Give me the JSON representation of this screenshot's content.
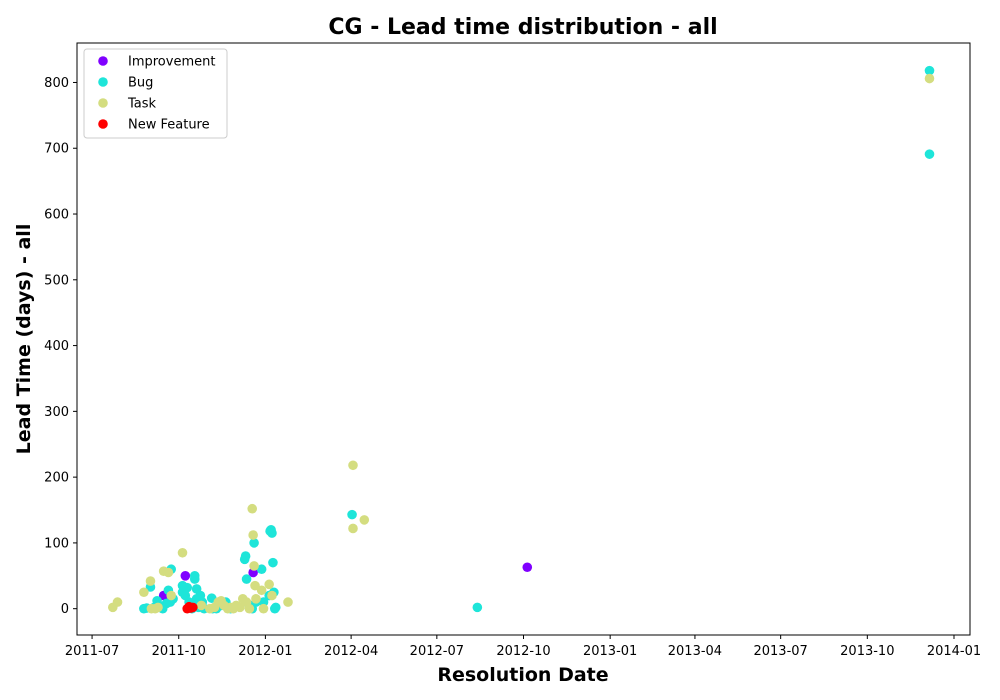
{
  "chart_data": {
    "type": "scatter",
    "title": "CG - Lead time distribution - all",
    "xlabel": "Resolution Date",
    "ylabel": "Lead Time (days) - all",
    "xlim": [
      "2011-06-15",
      "2014-01-18"
    ],
    "ylim": [
      -40,
      860
    ],
    "x_ticks": [
      "2011-07-01",
      "2011-10-01",
      "2012-01-01",
      "2012-04-01",
      "2012-07-01",
      "2012-10-01",
      "2013-01-01",
      "2013-04-01",
      "2013-07-01",
      "2013-10-01",
      "2014-01-01"
    ],
    "x_tick_labels": [
      "2011-07",
      "2011-10",
      "2012-01",
      "2012-04",
      "2012-07",
      "2012-10",
      "2013-01",
      "2013-04",
      "2013-07",
      "2013-10",
      "2014-01"
    ],
    "y_ticks": [
      0,
      100,
      200,
      300,
      400,
      500,
      600,
      700,
      800
    ],
    "y_tick_labels": [
      "0",
      "100",
      "200",
      "300",
      "400",
      "500",
      "600",
      "700",
      "800"
    ],
    "grid": false,
    "legend_position": "top-left",
    "series": [
      {
        "name": "Improvement",
        "color": "#8000ff",
        "points": [
          [
            "2011-09-15",
            20
          ],
          [
            "2011-10-08",
            50
          ],
          [
            "2011-10-15",
            2
          ],
          [
            "2011-10-22",
            5
          ],
          [
            "2011-10-25",
            8
          ],
          [
            "2011-12-19",
            55
          ],
          [
            "2012-10-05",
            63
          ]
        ]
      },
      {
        "name": "Bug",
        "color": "#1ee5d9",
        "points": [
          [
            "2011-08-25",
            0
          ],
          [
            "2011-08-28",
            1
          ],
          [
            "2011-09-01",
            33
          ],
          [
            "2011-09-05",
            2
          ],
          [
            "2011-09-08",
            12
          ],
          [
            "2011-09-10",
            5
          ],
          [
            "2011-09-14",
            0
          ],
          [
            "2011-09-18",
            8
          ],
          [
            "2011-09-20",
            28
          ],
          [
            "2011-09-22",
            10
          ],
          [
            "2011-09-23",
            60
          ],
          [
            "2011-09-25",
            15
          ],
          [
            "2011-10-05",
            25
          ],
          [
            "2011-10-05",
            35
          ],
          [
            "2011-10-08",
            20
          ],
          [
            "2011-10-10",
            32
          ],
          [
            "2011-10-12",
            10
          ],
          [
            "2011-10-15",
            0
          ],
          [
            "2011-10-18",
            50
          ],
          [
            "2011-10-18",
            45
          ],
          [
            "2011-10-20",
            30
          ],
          [
            "2011-10-20",
            15
          ],
          [
            "2011-10-22",
            2
          ],
          [
            "2011-10-24",
            20
          ],
          [
            "2011-10-26",
            10
          ],
          [
            "2011-10-28",
            0
          ],
          [
            "2011-11-05",
            16
          ],
          [
            "2011-11-06",
            0
          ],
          [
            "2011-11-10",
            0
          ],
          [
            "2011-11-15",
            5
          ],
          [
            "2011-11-20",
            10
          ],
          [
            "2011-11-25",
            0
          ],
          [
            "2011-12-10",
            75
          ],
          [
            "2011-12-11",
            80
          ],
          [
            "2011-12-12",
            45
          ],
          [
            "2011-12-15",
            5
          ],
          [
            "2011-12-18",
            0
          ],
          [
            "2011-12-20",
            100
          ],
          [
            "2011-12-22",
            10
          ],
          [
            "2011-12-28",
            60
          ],
          [
            "2011-12-30",
            10
          ],
          [
            "2012-01-05",
            20
          ],
          [
            "2012-01-06",
            118
          ],
          [
            "2012-01-07",
            120
          ],
          [
            "2012-01-08",
            115
          ],
          [
            "2012-01-09",
            70
          ],
          [
            "2012-01-10",
            25
          ],
          [
            "2012-01-11",
            0
          ],
          [
            "2012-01-12",
            2
          ],
          [
            "2012-04-02",
            143
          ],
          [
            "2012-08-13",
            2
          ],
          [
            "2013-12-06",
            818
          ],
          [
            "2013-12-06",
            691
          ]
        ]
      },
      {
        "name": "Task",
        "color": "#d4dd80",
        "points": [
          [
            "2011-07-23",
            2
          ],
          [
            "2011-07-28",
            10
          ],
          [
            "2011-08-25",
            25
          ],
          [
            "2011-09-01",
            42
          ],
          [
            "2011-09-02",
            0
          ],
          [
            "2011-09-06",
            0
          ],
          [
            "2011-09-09",
            2
          ],
          [
            "2011-09-15",
            57
          ],
          [
            "2011-09-20",
            55
          ],
          [
            "2011-09-23",
            20
          ],
          [
            "2011-10-05",
            85
          ],
          [
            "2011-10-25",
            5
          ],
          [
            "2011-11-03",
            0
          ],
          [
            "2011-11-08",
            2
          ],
          [
            "2011-11-12",
            10
          ],
          [
            "2011-11-15",
            12
          ],
          [
            "2011-11-18",
            5
          ],
          [
            "2011-11-22",
            0
          ],
          [
            "2011-11-25",
            2
          ],
          [
            "2011-11-28",
            0
          ],
          [
            "2011-12-01",
            5
          ],
          [
            "2011-12-05",
            2
          ],
          [
            "2011-12-08",
            15
          ],
          [
            "2011-12-12",
            10
          ],
          [
            "2011-12-15",
            0
          ],
          [
            "2011-12-18",
            152
          ],
          [
            "2011-12-19",
            112
          ],
          [
            "2011-12-20",
            65
          ],
          [
            "2011-12-21",
            35
          ],
          [
            "2011-12-22",
            15
          ],
          [
            "2011-12-28",
            28
          ],
          [
            "2011-12-30",
            0
          ],
          [
            "2012-01-05",
            37
          ],
          [
            "2012-01-08",
            20
          ],
          [
            "2012-01-25",
            10
          ],
          [
            "2012-04-03",
            218
          ],
          [
            "2012-04-03",
            122
          ],
          [
            "2012-04-15",
            135
          ],
          [
            "2013-12-06",
            806
          ]
        ]
      },
      {
        "name": "New Feature",
        "color": "#ff0000",
        "points": [
          [
            "2011-10-10",
            0
          ],
          [
            "2011-10-12",
            3
          ],
          [
            "2011-10-14",
            1
          ],
          [
            "2011-10-16",
            2
          ]
        ]
      }
    ]
  }
}
